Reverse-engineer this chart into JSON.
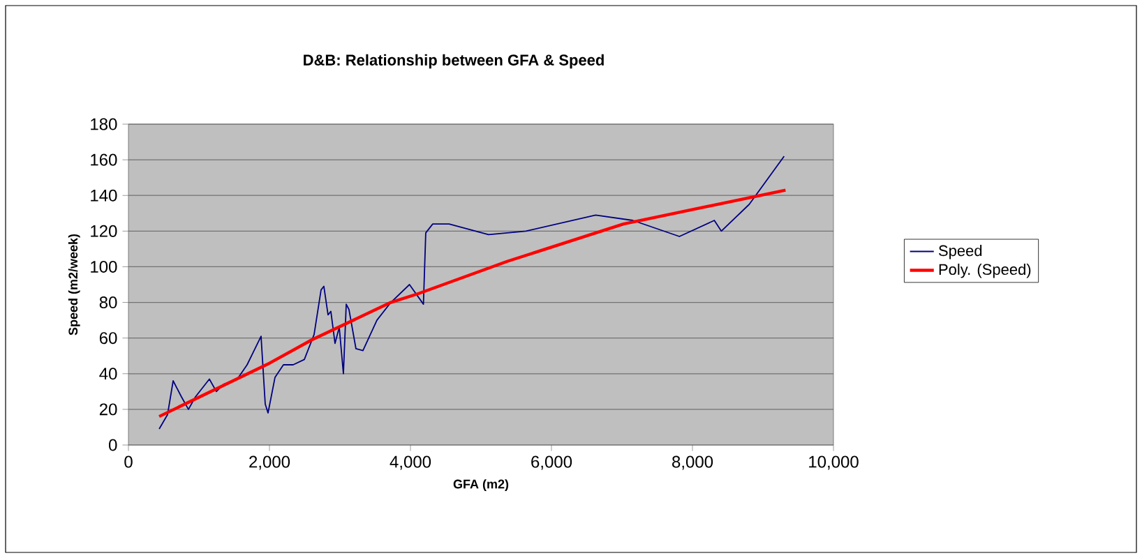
{
  "chart_data": {
    "type": "line",
    "title": "D&B: Relationship between GFA & Speed",
    "xlabel": "GFA (m2)",
    "ylabel": "Speed (m2/week)",
    "xlim": [
      0,
      10000
    ],
    "ylim": [
      0,
      180
    ],
    "xticks": [
      0,
      {
        "value": 2000,
        "label": "2,000"
      },
      {
        "value": 4000,
        "label": "4,000"
      },
      {
        "value": 6000,
        "label": "6,000"
      },
      {
        "value": 8000,
        "label": "8,000"
      },
      {
        "value": 10000,
        "label": "10,000"
      }
    ],
    "yticks": [
      0,
      20,
      40,
      60,
      80,
      100,
      120,
      140,
      160,
      180
    ],
    "grid": "y",
    "legend": "right",
    "marker": "none",
    "series": [
      {
        "name": "Speed",
        "color": "#000080",
        "x": [
          436,
          554,
          634,
          752,
          851,
          950,
          1148,
          1247,
          1346,
          1544,
          1683,
          1881,
          1940,
          1980,
          2079,
          2198,
          2336,
          2495,
          2633,
          2732,
          2772,
          2831,
          2871,
          2930,
          2990,
          3049,
          3089,
          3128,
          3227,
          3326,
          3524,
          3722,
          3986,
          4184,
          4217,
          4316,
          4548,
          5108,
          5637,
          6627,
          7154,
          7815,
          8310,
          8409,
          8805,
          9300
        ],
        "values": [
          9,
          17,
          36,
          27,
          20,
          27,
          37,
          30,
          34,
          37,
          45,
          61,
          23,
          18,
          38,
          45,
          45,
          48,
          62,
          87,
          89,
          73,
          75,
          57,
          66,
          40,
          79,
          76,
          54,
          53,
          70,
          80,
          90,
          79,
          119,
          124,
          124,
          118,
          120,
          129,
          126,
          117,
          126,
          120,
          135,
          162
        ]
      },
      {
        "name": "Poly. (Speed)",
        "color": "#ff0000",
        "x": [
          436,
          2006,
          2600,
          3722,
          4118,
          5372,
          7022,
          9320
        ],
        "values": [
          16,
          46,
          59,
          80,
          85,
          103,
          124,
          143
        ]
      }
    ]
  }
}
